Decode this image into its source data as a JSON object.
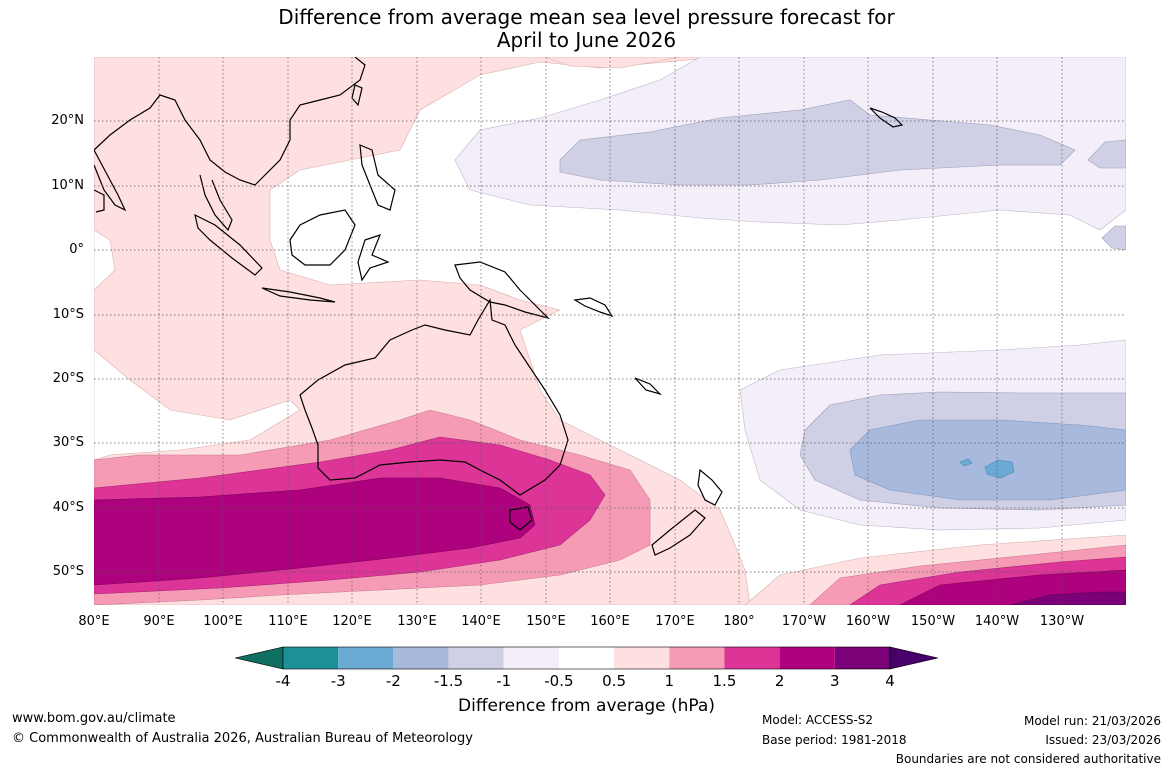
{
  "title": {
    "line1": "Difference from average mean sea level pressure forecast for",
    "line2": "April to June 2026"
  },
  "map": {
    "lat_labels": [
      "20°N",
      "10°N",
      "0°",
      "10°S",
      "20°S",
      "30°S",
      "40°S",
      "50°S"
    ],
    "lon_labels": [
      "80°E",
      "90°E",
      "100°E",
      "110°E",
      "120°E",
      "130°E",
      "140°E",
      "150°E",
      "160°E",
      "170°E",
      "180°",
      "170°W",
      "160°W",
      "150°W",
      "140°W",
      "130°W"
    ],
    "lon_range": [
      "80°E",
      "125°W"
    ],
    "lat_range": [
      "55°S",
      "30°N"
    ]
  },
  "colorbar": {
    "title": "Difference from average (hPa)",
    "ticks": [
      "-4",
      "-3",
      "-2",
      "-1.5",
      "-1",
      "-0.5",
      "0.5",
      "1",
      "1.5",
      "2",
      "3",
      "4"
    ],
    "colors": [
      "#0f6f62",
      "#1b9197",
      "#6aaad3",
      "#a7b9dc",
      "#cfd0e6",
      "#f3eef7",
      "#ffffff",
      "#fde0df",
      "#f69bb6",
      "#dd3497",
      "#ae017e",
      "#7a0177",
      "#49006a"
    ],
    "under_color": "#0f6f62",
    "over_color": "#49006a"
  },
  "footer": {
    "website": "www.bom.gov.au/climate",
    "copyright": "© Commonwealth of Australia 2026, Australian Bureau of Meteorology",
    "model": "Model: ACCESS-S2",
    "base_period": "Base period: 1981-2018",
    "model_run": "Model run: 21/03/2026",
    "issued": "Issued: 23/03/2026",
    "disclaimer": "Boundaries are not considered authoritative"
  }
}
